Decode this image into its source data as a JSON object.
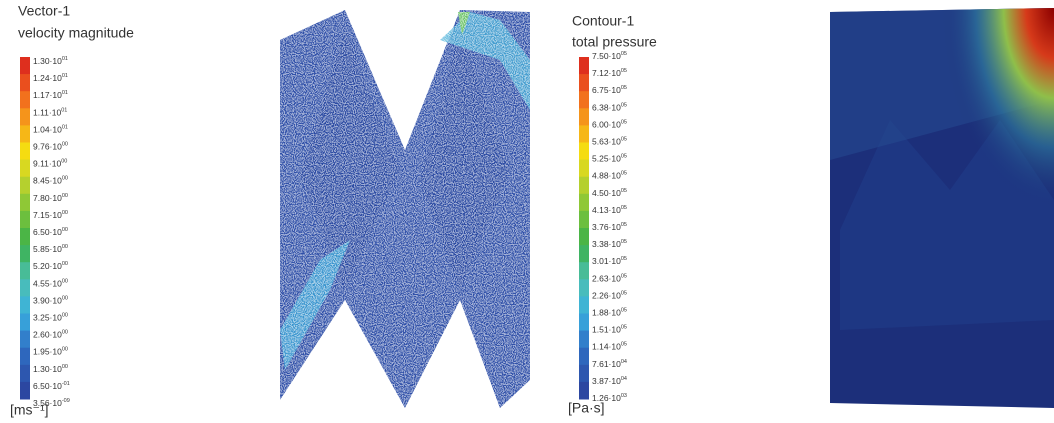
{
  "panels": [
    {
      "title": "Vector-1",
      "subtitle": "velocity magnitude",
      "unit": "[ms⁻¹]",
      "labels": [
        {
          "base": "1.30·10",
          "exp": "01"
        },
        {
          "base": "1.24·10",
          "exp": "01"
        },
        {
          "base": "1.17·10",
          "exp": "01"
        },
        {
          "base": "1.11·10",
          "exp": "01"
        },
        {
          "base": "1.04·10",
          "exp": "01"
        },
        {
          "base": "9.76·10",
          "exp": "00"
        },
        {
          "base": "9.11·10",
          "exp": "00"
        },
        {
          "base": "8.45·10",
          "exp": "00"
        },
        {
          "base": "7.80·10",
          "exp": "00"
        },
        {
          "base": "7.15·10",
          "exp": "00"
        },
        {
          "base": "6.50·10",
          "exp": "00"
        },
        {
          "base": "5.85·10",
          "exp": "00"
        },
        {
          "base": "5.20·10",
          "exp": "00"
        },
        {
          "base": "4.55·10",
          "exp": "00"
        },
        {
          "base": "3.90·10",
          "exp": "00"
        },
        {
          "base": "3.25·10",
          "exp": "00"
        },
        {
          "base": "2.60·10",
          "exp": "00"
        },
        {
          "base": "1.95·10",
          "exp": "00"
        },
        {
          "base": "1.30·10",
          "exp": "00"
        },
        {
          "base": "6.50·10",
          "exp": "-01"
        },
        {
          "base": "3.56·10",
          "exp": "-09"
        }
      ]
    },
    {
      "title": "Contour-1",
      "subtitle": "total pressure",
      "unit": "[Pa·s]",
      "labels": [
        {
          "base": "7.50·10",
          "exp": "05"
        },
        {
          "base": "7.12·10",
          "exp": "05"
        },
        {
          "base": "6.75·10",
          "exp": "05"
        },
        {
          "base": "6.38·10",
          "exp": "05"
        },
        {
          "base": "6.00·10",
          "exp": "05"
        },
        {
          "base": "5.63·10",
          "exp": "05"
        },
        {
          "base": "5.25·10",
          "exp": "05"
        },
        {
          "base": "4.88·10",
          "exp": "05"
        },
        {
          "base": "4.50·10",
          "exp": "05"
        },
        {
          "base": "4.13·10",
          "exp": "05"
        },
        {
          "base": "3.76·10",
          "exp": "05"
        },
        {
          "base": "3.38·10",
          "exp": "05"
        },
        {
          "base": "3.01·10",
          "exp": "05"
        },
        {
          "base": "2.63·10",
          "exp": "05"
        },
        {
          "base": "2.26·10",
          "exp": "05"
        },
        {
          "base": "1.88·10",
          "exp": "05"
        },
        {
          "base": "1.51·10",
          "exp": "05"
        },
        {
          "base": "1.14·10",
          "exp": "05"
        },
        {
          "base": "7.61·10",
          "exp": "04"
        },
        {
          "base": "3.87·10",
          "exp": "04"
        },
        {
          "base": "1.26·10",
          "exp": "03"
        }
      ]
    }
  ]
}
